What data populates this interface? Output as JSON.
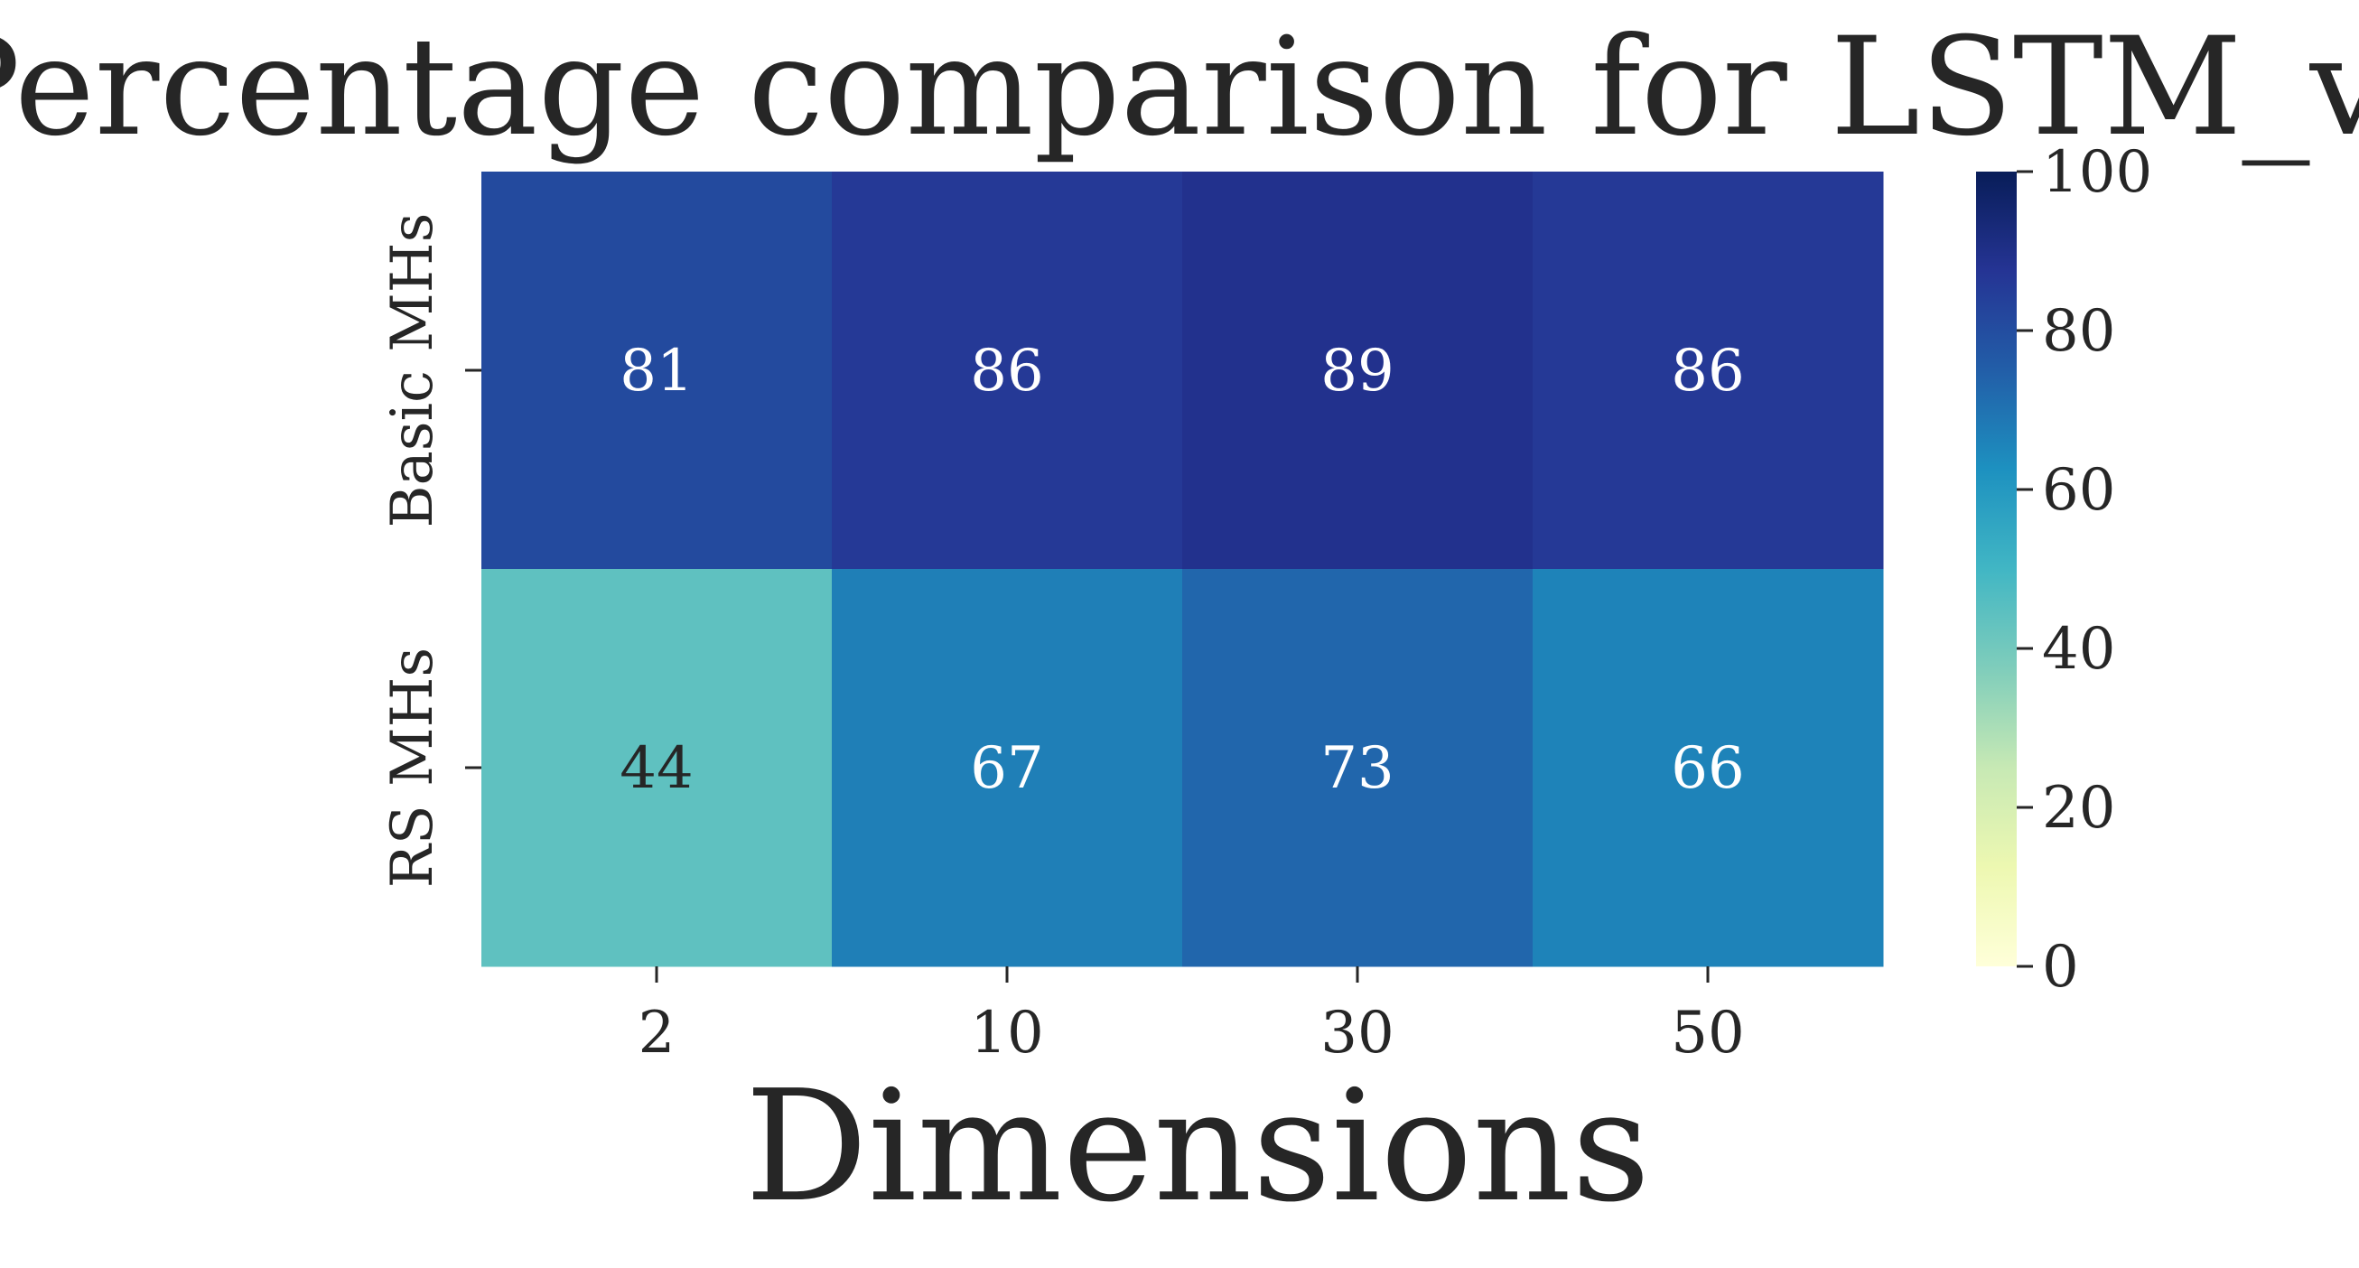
{
  "chart_data": {
    "type": "heatmap",
    "title": "Percentage comparison for LSTM_vl",
    "xlabel": "Dimensions",
    "ylabel": "",
    "x_categories": [
      "2",
      "10",
      "30",
      "50"
    ],
    "y_categories": [
      "Basic MHs",
      "RS MHs"
    ],
    "values": [
      [
        81,
        86,
        89,
        86
      ],
      [
        44,
        67,
        73,
        66
      ]
    ],
    "colorbar": {
      "min": 0,
      "max": 100,
      "ticks": [
        "0",
        "20",
        "40",
        "60",
        "80",
        "100"
      ],
      "colormap": "YlGnBu",
      "stops": [
        "#ffffd9",
        "#edf8b1",
        "#c7e9b4",
        "#7fcdbb",
        "#41b6c4",
        "#1d91c0",
        "#225ea8",
        "#253494",
        "#081d58"
      ]
    },
    "grid": false
  }
}
